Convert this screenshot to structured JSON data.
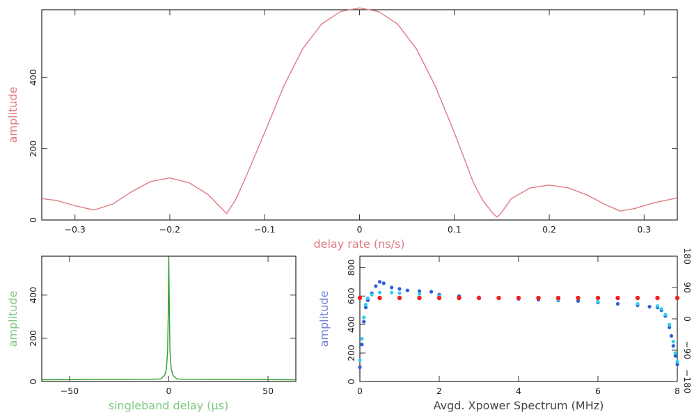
{
  "chart_data": [
    {
      "type": "line",
      "xlabel": "delay rate (ns/s)",
      "ylabel": "amplitude",
      "xlim": [
        -0.335,
        0.335
      ],
      "ylim": [
        0,
        590
      ],
      "xticks": [
        -0.3,
        -0.2,
        -0.1,
        0,
        0.1,
        0.2,
        0.3
      ],
      "yticks": [
        0,
        200,
        400
      ],
      "color": "#e07a82",
      "x": [
        -0.335,
        -0.32,
        -0.3,
        -0.28,
        -0.26,
        -0.24,
        -0.22,
        -0.2,
        -0.18,
        -0.16,
        -0.15,
        -0.14,
        -0.13,
        -0.12,
        -0.1,
        -0.08,
        -0.06,
        -0.04,
        -0.02,
        0.0,
        0.02,
        0.04,
        0.06,
        0.08,
        0.1,
        0.12,
        0.13,
        0.14,
        0.145,
        0.15,
        0.16,
        0.18,
        0.2,
        0.22,
        0.24,
        0.26,
        0.275,
        0.29,
        0.31,
        0.335
      ],
      "y": [
        60,
        55,
        40,
        28,
        45,
        80,
        108,
        118,
        105,
        72,
        45,
        18,
        60,
        120,
        245,
        375,
        480,
        550,
        585,
        595,
        585,
        550,
        480,
        375,
        245,
        105,
        55,
        20,
        8,
        22,
        60,
        90,
        98,
        90,
        70,
        42,
        25,
        32,
        48,
        62
      ]
    },
    {
      "type": "line",
      "xlabel": "singleband delay (μs)",
      "ylabel": "amplitude",
      "xlim": [
        -64,
        64
      ],
      "ylim": [
        0,
        580
      ],
      "xticks": [
        -50,
        0,
        50
      ],
      "yticks": [
        0,
        200,
        400
      ],
      "color": "#2e9e2e",
      "x": [
        -64,
        -40,
        -10,
        -4,
        -2,
        -1.2,
        -0.6,
        -0.3,
        0,
        0.3,
        0.6,
        1.2,
        2,
        4,
        10,
        40,
        64
      ],
      "y": [
        8,
        9,
        10,
        12,
        30,
        60,
        140,
        300,
        575,
        300,
        140,
        60,
        30,
        12,
        10,
        9,
        8
      ]
    },
    {
      "type": "scatter",
      "xlabel": "Avgd. Xpower Spectrum (MHz)",
      "ylabel": "amplitude",
      "xlim": [
        0,
        8
      ],
      "ylim": [
        0,
        880
      ],
      "xticks": [
        0,
        2,
        4,
        6,
        8
      ],
      "yticks": [
        0,
        200,
        400,
        600,
        800
      ],
      "y2lim": [
        -180,
        180
      ],
      "y2ticks": [
        -180,
        -90,
        0,
        90,
        180
      ],
      "series": [
        {
          "name": "",
          "color": "#2d5fd6",
          "axis": "left",
          "x": [
            0,
            0.05,
            0.1,
            0.15,
            0.2,
            0.3,
            0.4,
            0.5,
            0.6,
            0.8,
            1.0,
            1.2,
            1.5,
            1.8,
            2.0,
            2.5,
            3.0,
            3.5,
            4.0,
            4.5,
            5.0,
            5.5,
            6.0,
            6.5,
            7.0,
            7.3,
            7.5,
            7.6,
            7.7,
            7.8,
            7.85,
            7.9,
            7.95,
            8.0
          ],
          "y": [
            100,
            260,
            420,
            520,
            570,
            620,
            670,
            700,
            690,
            660,
            650,
            640,
            635,
            630,
            610,
            600,
            590,
            585,
            580,
            575,
            570,
            565,
            555,
            545,
            535,
            525,
            520,
            500,
            460,
            380,
            320,
            250,
            180,
            120
          ]
        },
        {
          "name": "",
          "color": "#33ccee",
          "axis": "left",
          "x": [
            0,
            0.05,
            0.1,
            0.15,
            0.2,
            0.3,
            0.5,
            0.8,
            1.0,
            1.5,
            2.0,
            3.0,
            4.0,
            5.0,
            6.0,
            7.0,
            7.5,
            7.6,
            7.7,
            7.8,
            7.9,
            7.95,
            8.0
          ],
          "y": [
            150,
            300,
            450,
            540,
            585,
            610,
            625,
            625,
            620,
            615,
            600,
            590,
            585,
            575,
            560,
            545,
            530,
            510,
            470,
            400,
            280,
            200,
            140
          ]
        },
        {
          "name": "",
          "color": "#ee2020",
          "axis": "right",
          "x": [
            0,
            0.5,
            1,
            1.5,
            2,
            2.5,
            3,
            3.5,
            4,
            4.5,
            5,
            5.5,
            6,
            6.5,
            7,
            7.5,
            8
          ],
          "y": [
            60,
            60,
            60,
            60,
            60,
            60,
            60,
            60,
            60,
            60,
            60,
            60,
            60,
            60,
            60,
            60,
            60
          ]
        }
      ]
    }
  ]
}
